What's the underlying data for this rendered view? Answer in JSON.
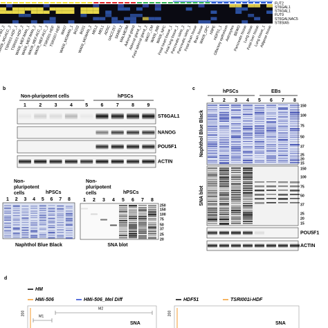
{
  "heatmap": {
    "row_labels": [
      "FUT2",
      "ST6GAL1",
      "ST6GAL1",
      "FUT9",
      "ST6GALNAC5",
      "ST8SIA5"
    ],
    "column_labels": [
      "iPS hFib2_2",
      "WA09_MGACC_2",
      "TSRI001-HDF_1",
      "TSRI001-HDF_2",
      "WA09_MEF.MAN_1",
      "WA09_MEF.MAN_2",
      "WA09_MEF.ACC_1",
      "WA09_MEF.ACC_2",
      "TSRI001-HDF",
      "TSRI007-HDF",
      "WA07",
      "WA09_MGMAN_1",
      "BG02",
      "BG01",
      "WA09_MGMAN_2",
      "MEL2",
      "MEL1",
      "ADSC",
      "UACC257",
      "SKMEL2",
      "MALME3M",
      "Adrenal gland",
      "Adrenal gland_1",
      "Fetal adrenal gland_2",
      "WA07_CM",
      "WA09_IMR",
      "WA09_NPC",
      "Fetal heart tissue_1",
      "Fetal lung tissue_1",
      "Pancreatic islets_2",
      "Pancreatic islets_1",
      "Fetal brain tissue",
      "Brain tissue",
      "WA09_OPC",
      "hRPE",
      "HDF51_1",
      "Olfactory epithelium",
      "Astrocytes",
      "BEWO",
      "Pancreatic tissue",
      "Lung tissue",
      "Fetal liver tissue",
      "Lung tissue_1",
      "Adipose tissue"
    ]
  },
  "panel_b": {
    "letter": "b",
    "group_nonpluri": "Non-pluripotent cells",
    "group_hpsc": "hPSCs",
    "lanes": [
      1,
      2,
      3,
      4,
      5,
      6,
      7,
      8,
      9
    ],
    "blots": [
      "ST6GAL1",
      "NANOG",
      "POU5F1",
      "ACTIN"
    ],
    "nbb": {
      "group_nonpluri_lines": [
        "Non-",
        "pluripotent",
        "cells"
      ],
      "group_hpsc": "hPSCs",
      "lanes": [
        1,
        2,
        3,
        4,
        5,
        6,
        7,
        8
      ],
      "label": "Naphthol Blue Black"
    },
    "sna": {
      "group_nonpluri_lines": [
        "Non-",
        "pluripotent",
        "cells"
      ],
      "group_hpsc": "hPSCs",
      "lanes": [
        1,
        2,
        3,
        4,
        5,
        6,
        7,
        8
      ],
      "ladder": [
        250,
        150,
        100,
        75,
        50,
        37,
        25,
        20
      ],
      "label": "SNA blot"
    }
  },
  "panel_c": {
    "letter": "c",
    "group_hpsc": "hPSCs",
    "group_eb": "EBs",
    "lanes": [
      1,
      2,
      3,
      4,
      5,
      6,
      7,
      8
    ],
    "nbb_ladder": [
      150,
      100,
      75,
      50,
      37,
      25,
      20,
      15
    ],
    "nbb_label": "Naphthol Blue Black",
    "sna_ladder": [
      150,
      100,
      75,
      50,
      37,
      25,
      20,
      15
    ],
    "sna_label": "SNA blot",
    "blots": [
      "POU5F1",
      "ACTIN"
    ]
  },
  "panel_d": {
    "letter": "d",
    "legend_left": [
      "HM",
      "HMi-506",
      "HMi-506_Mel Diff"
    ],
    "legend_right": [
      "HDF51",
      "TSRI001i-HDF"
    ],
    "y_tick_left": "200",
    "y_tick_right": "200",
    "gates": [
      "M1",
      "M2"
    ],
    "x_label_left": "SNA",
    "x_label_right": "SNA"
  }
}
